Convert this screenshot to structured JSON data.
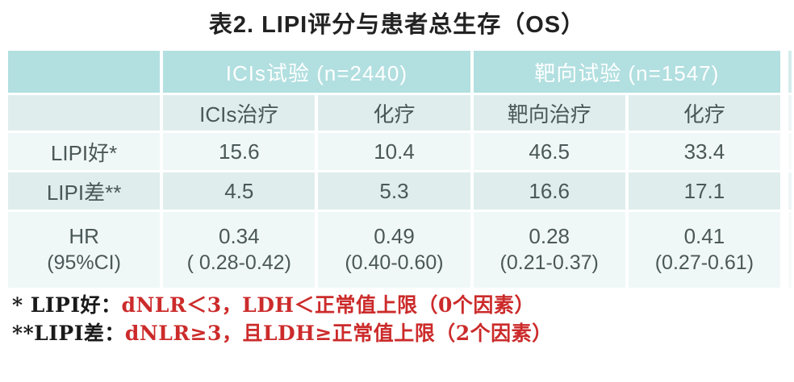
{
  "title": "表2. LIPI评分与患者总生存（OS）",
  "colors": {
    "header_teal": "#b2dfe0",
    "header_text": "#ffffff",
    "row_shaded": "#dfeeed",
    "row_pale": "#f0f8f7",
    "body_text": "#4b5858",
    "title_text": "#222222",
    "footnote_text": "#1a1a1a",
    "footnote_red": "#cc2b2b"
  },
  "chart_data": {
    "type": "table",
    "title": "表2. LIPI评分与患者总生存（OS）",
    "group_headers": [
      "ICIs试验 (n=2440)",
      "靶向试验 (n=1547)"
    ],
    "column_headers": [
      "ICIs治疗",
      "化疗",
      "靶向治疗",
      "化疗"
    ],
    "rows": [
      {
        "label": "LIPI好*",
        "values": [
          15.6,
          10.4,
          46.5,
          33.4
        ]
      },
      {
        "label": "LIPI差**",
        "values": [
          4.5,
          5.3,
          16.6,
          17.1
        ]
      },
      {
        "label": "HR (95%CI)",
        "values": [
          "0.34 (0.28-0.42)",
          "0.49 (0.40-0.60)",
          "0.28 (0.21-0.37)",
          "0.41 (0.27-0.61)"
        ]
      }
    ]
  },
  "table": {
    "group_headers": [
      "ICIs试验 (n=2440)",
      "靶向试验 (n=1547)"
    ],
    "column_headers": [
      "ICIs治疗",
      "化疗",
      "靶向治疗",
      "化疗"
    ],
    "rows": [
      {
        "label": "LIPI好*",
        "values": [
          "15.6",
          "10.4",
          "46.5",
          "33.4"
        ]
      },
      {
        "label": "LIPI差**",
        "values": [
          "4.5",
          "5.3",
          "16.6",
          "17.1"
        ]
      }
    ],
    "hr_row": {
      "label_top": "HR",
      "label_bottom": "(95%CI)",
      "hr_values": [
        "0.34",
        "0.49",
        "0.28",
        "0.41"
      ],
      "ci_values": [
        "( 0.28-0.42)",
        "(0.40-0.60)",
        "(0.21-0.37)",
        "(0.27-0.61)"
      ]
    }
  },
  "footnotes": [
    {
      "prefix": "* LIPI好：",
      "detail": "dNLR＜3，LDH＜正常值上限（0个因素）"
    },
    {
      "prefix": "**LIPI差：",
      "detail": "dNLR≥3，且LDH≥正常值上限（2个因素）"
    }
  ]
}
